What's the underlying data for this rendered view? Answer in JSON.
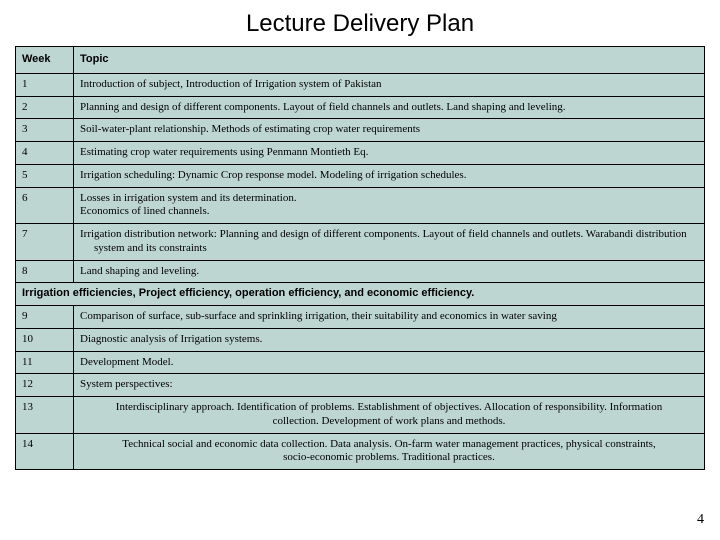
{
  "title": "Lecture Delivery Plan",
  "pageNumber": "4",
  "table": {
    "headerBg": "#bed6d2",
    "cellBg": "#bed6d2",
    "borderColor": "#000000",
    "columns": {
      "week": "Week",
      "topic": "Topic"
    },
    "rows": [
      {
        "week": "1",
        "topic": "Introduction of subject, Introduction of Irrigation system of Pakistan"
      },
      {
        "week": "2",
        "topic": "Planning and design of different components. Layout of field channels and outlets. Land shaping and leveling."
      },
      {
        "week": "3",
        "topic": "Soil-water-plant relationship. Methods of estimating crop water requirements"
      },
      {
        "week": "4",
        "topic": "Estimating crop water requirements using Penmann Montieth Eq."
      },
      {
        "week": "5",
        "topic": "Irrigation scheduling: Dynamic Crop response model. Modeling of irrigation schedules."
      },
      {
        "week": "6",
        "topic": "Losses in irrigation system and its determination.\nEconomics of lined channels."
      },
      {
        "week": "7",
        "topic": "Irrigation distribution network: Planning and design of different components. Layout of field channels and outlets. Warabandi distribution system and its constraints",
        "indent": true
      },
      {
        "week": "8",
        "topic": "Land shaping and leveling."
      },
      {
        "spanner": "Irrigation efficiencies, Project efficiency, operation efficiency, and economic efficiency."
      },
      {
        "week": "9",
        "topic": "Comparison of surface, sub-surface and sprinkling irrigation, their suitability and economics in water saving"
      },
      {
        "week": "10",
        "topic": "Diagnostic analysis of Irrigation systems."
      },
      {
        "week": "11",
        "topic": "Development Model."
      },
      {
        "week": "12",
        "topic": "System perspectives:"
      },
      {
        "week": "13",
        "topic": "Interdisciplinary approach. Identification of problems. Establishment of objectives. Allocation of responsibility. Information collection. Development of work plans and methods.",
        "center": true
      },
      {
        "week": "14",
        "topic": "Technical social and economic data collection. Data analysis. On-farm water management practices, physical constraints, socio-economic problems. Traditional practices.",
        "center": true
      }
    ]
  }
}
